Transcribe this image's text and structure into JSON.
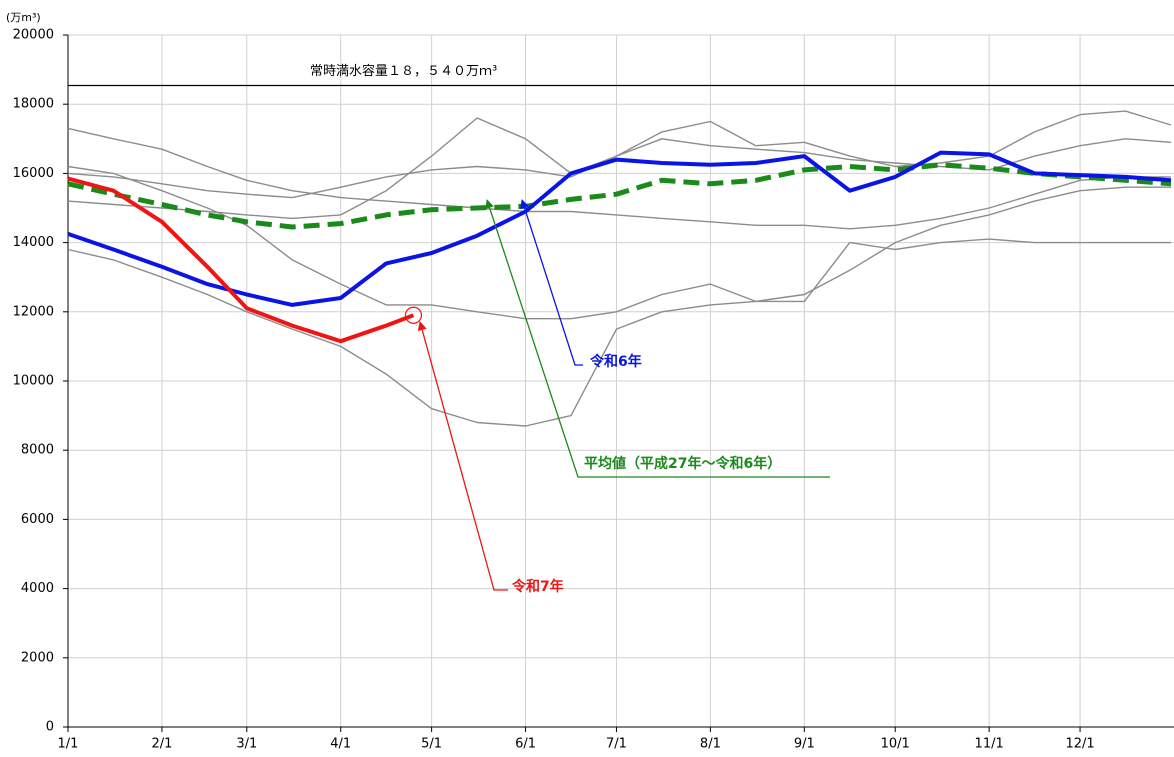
{
  "chart_data": {
    "type": "line",
    "y_unit": "(万m³)",
    "capacity_label": "常時満水容量１８，５４０万ｍ³",
    "capacity_value": 18540,
    "xlim": [
      0,
      365
    ],
    "ylim": [
      0,
      20000
    ],
    "xticks": [
      {
        "value": 0,
        "label": "1/1"
      },
      {
        "value": 31,
        "label": "2/1"
      },
      {
        "value": 59,
        "label": "3/1"
      },
      {
        "value": 90,
        "label": "4/1"
      },
      {
        "value": 120,
        "label": "5/1"
      },
      {
        "value": 151,
        "label": "6/1"
      },
      {
        "value": 181,
        "label": "7/1"
      },
      {
        "value": 212,
        "label": "8/1"
      },
      {
        "value": 243,
        "label": "9/1"
      },
      {
        "value": 273,
        "label": "10/1"
      },
      {
        "value": 304,
        "label": "11/1"
      },
      {
        "value": 334,
        "label": "12/1"
      }
    ],
    "yticks": [
      0,
      2000,
      4000,
      6000,
      8000,
      10000,
      12000,
      14000,
      16000,
      18000,
      20000
    ],
    "grid": true,
    "x": [
      0,
      15,
      31,
      46,
      59,
      74,
      90,
      105,
      120,
      135,
      151,
      166,
      181,
      196,
      212,
      227,
      243,
      258,
      273,
      288,
      304,
      319,
      334,
      349,
      364
    ],
    "series": [
      {
        "color": "#8c8c8c",
        "values": [
          17300,
          17000,
          16700,
          16200,
          15800,
          15500,
          15300,
          15200,
          15100,
          15000,
          14900,
          14900,
          14800,
          14700,
          14600,
          14500,
          14500,
          14400,
          14500,
          14700,
          15000,
          15400,
          15800,
          15900,
          15900
        ]
      },
      {
        "color": "#8c8c8c",
        "values": [
          13800,
          13500,
          13000,
          12500,
          12000,
          11500,
          11000,
          10200,
          9200,
          8800,
          8700,
          9000,
          11500,
          12000,
          12200,
          12300,
          12300,
          14000,
          13800,
          14000,
          14100,
          14000,
          14000,
          14000,
          14000
        ]
      },
      {
        "color": "#8c8c8c",
        "values": [
          16200,
          16000,
          15500,
          15000,
          14500,
          13500,
          12800,
          12200,
          12200,
          12000,
          11800,
          11800,
          12000,
          12500,
          12800,
          12300,
          12500,
          13200,
          14000,
          14500,
          14800,
          15200,
          15500,
          15600,
          15600
        ]
      },
      {
        "color": "#8c8c8c",
        "values": [
          15200,
          15100,
          15000,
          14900,
          14800,
          14700,
          14800,
          15500,
          16500,
          17600,
          17000,
          16000,
          16500,
          17200,
          17500,
          16800,
          16900,
          16500,
          16200,
          16300,
          16500,
          17200,
          17700,
          17800,
          17400
        ]
      },
      {
        "color": "#8c8c8c",
        "values": [
          16000,
          15900,
          15700,
          15500,
          15400,
          15300,
          15600,
          15900,
          16100,
          16200,
          16100,
          15900,
          16500,
          17000,
          16800,
          16700,
          16600,
          16400,
          16300,
          16200,
          16100,
          16500,
          16800,
          17000,
          16900
        ]
      },
      {
        "name": "平均値（平成27年～令和6年）",
        "color": "#1a8a1a",
        "dashed": true,
        "values": [
          15700,
          15400,
          15100,
          14800,
          14600,
          14450,
          14550,
          14800,
          14950,
          15000,
          15050,
          15250,
          15400,
          15800,
          15700,
          15800,
          16100,
          16200,
          16100,
          16250,
          16150,
          16000,
          15900,
          15800,
          15700
        ]
      },
      {
        "name": "令和6年",
        "color": "#0a14e6",
        "values": [
          14250,
          13800,
          13300,
          12800,
          12500,
          12200,
          12400,
          13400,
          13700,
          14200,
          14900,
          16000,
          16400,
          16300,
          16250,
          16300,
          16500,
          15500,
          15900,
          16600,
          16550,
          16000,
          15950,
          15900,
          15800
        ]
      },
      {
        "name": "令和7年",
        "color": "#f01414",
        "x": [
          0,
          15,
          31,
          46,
          59,
          74,
          90,
          105,
          114
        ],
        "values": [
          15850,
          15500,
          14600,
          13300,
          12100,
          11600,
          11150,
          11600,
          11900
        ]
      }
    ]
  }
}
